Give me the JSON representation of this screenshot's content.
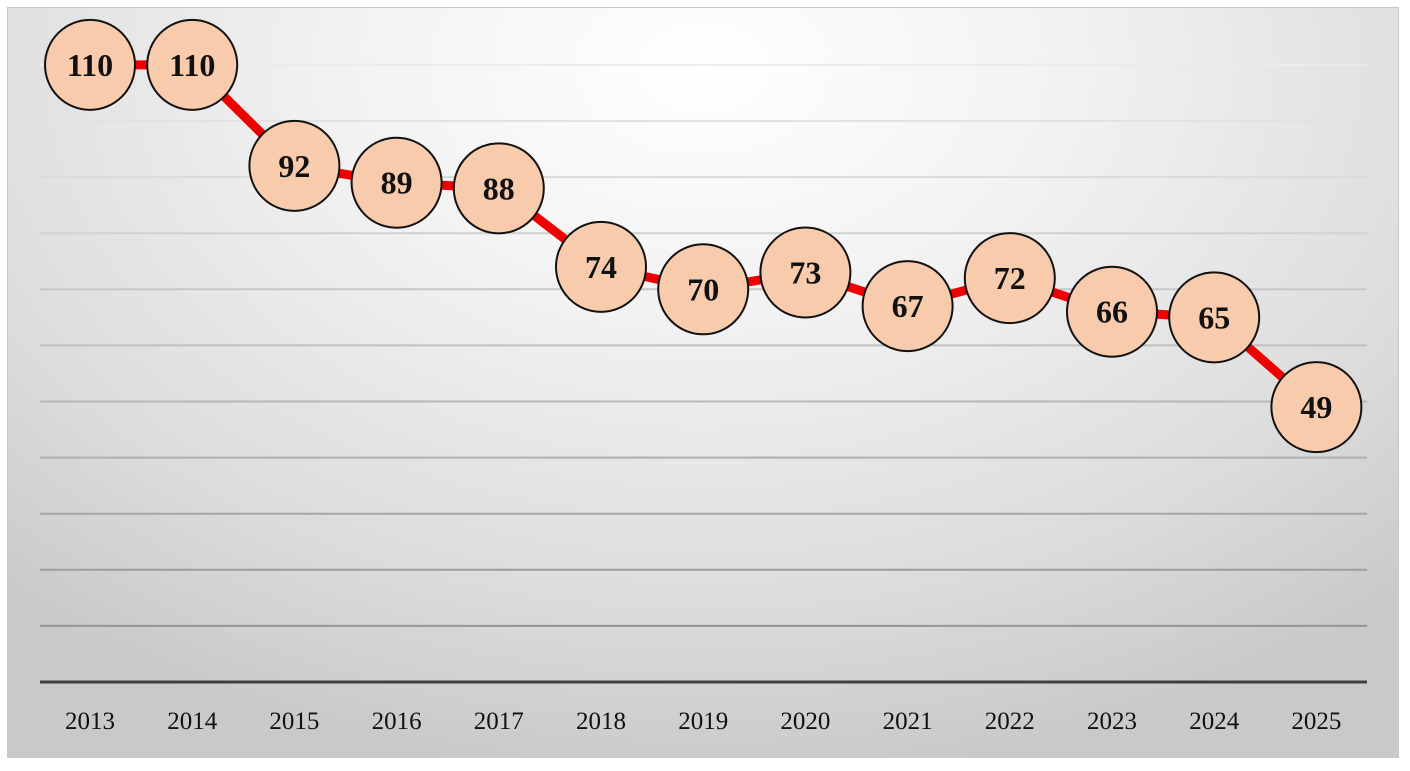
{
  "chart_data": {
    "type": "line",
    "title": "",
    "xlabel": "",
    "ylabel": "",
    "categories": [
      "2013",
      "2014",
      "2015",
      "2016",
      "2017",
      "2018",
      "2019",
      "2020",
      "2021",
      "2022",
      "2023",
      "2024",
      "2025"
    ],
    "series": [
      {
        "values": [
          110,
          110,
          92,
          89,
          88,
          74,
          70,
          73,
          67,
          72,
          66,
          65,
          49
        ]
      }
    ],
    "ylim": [
      0,
      115
    ],
    "show_y_tick_labels": false,
    "grid": true,
    "legend": "none",
    "data_labels": "inside circular markers",
    "colors": {
      "line": "#ee0000",
      "marker_fill": "#f8cbad",
      "marker_stroke": "#111111",
      "axis": "#404040",
      "grid": "#b4b4b4"
    }
  }
}
